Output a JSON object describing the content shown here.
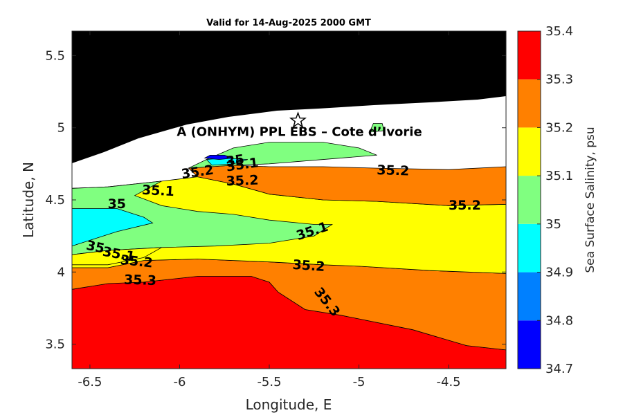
{
  "chart_data": {
    "type": "contour",
    "title": "Valid for 14-Aug-2025 2000 GMT",
    "xlabel": "Longitude, E",
    "ylabel": "Latitude, N",
    "xlim": [
      -6.6,
      -4.18
    ],
    "ylim": [
      3.33,
      5.67
    ],
    "xticks": [
      -6.5,
      -6,
      -5.5,
      -5,
      -4.5
    ],
    "xtick_labels": [
      "-6.5",
      "-6",
      "-5.5",
      "-5",
      "-4.5"
    ],
    "yticks": [
      3.5,
      4,
      4.5,
      5,
      5.5
    ],
    "ytick_labels": [
      "3.5",
      "4",
      "4.5",
      "5",
      "5.5"
    ],
    "colorbar": {
      "label": "Sea Surface Salinity, psu",
      "levels": [
        34.7,
        34.8,
        34.9,
        35.0,
        35.1,
        35.2,
        35.3,
        35.4
      ],
      "tick_labels": [
        "34.7",
        "34.8",
        "34.9",
        "35",
        "35.1",
        "35.2",
        "35.3",
        "35.4"
      ],
      "colors": [
        "#0000ff",
        "#0080ff",
        "#00ffff",
        "#80ff80",
        "#ffff00",
        "#ff8000",
        "#ff0000"
      ]
    },
    "land_color": "#000000",
    "site": {
      "label": "A (ONHYM) PPL EBS  – Cote d’Ivorie",
      "lon": -5.34,
      "lat": 5.05,
      "marker": "star"
    },
    "contour_labels": [
      {
        "text": "35",
        "lon": -5.69,
        "lat": 4.77,
        "angle": -8
      },
      {
        "text": "35.1",
        "lon": -5.65,
        "lat": 4.74,
        "angle": -8
      },
      {
        "text": "35.2",
        "lon": -5.9,
        "lat": 4.69,
        "angle": -8
      },
      {
        "text": "35.2",
        "lon": -5.65,
        "lat": 4.63,
        "angle": -2
      },
      {
        "text": "35.1",
        "lon": -6.12,
        "lat": 4.56,
        "angle": 3
      },
      {
        "text": "35",
        "lon": -6.35,
        "lat": 4.47,
        "angle": 0
      },
      {
        "text": "35.2",
        "lon": -4.81,
        "lat": 4.7,
        "angle": 2
      },
      {
        "text": "35.2",
        "lon": -4.41,
        "lat": 4.46,
        "angle": 0
      },
      {
        "text": "35.1",
        "lon": -5.26,
        "lat": 4.28,
        "angle": -18
      },
      {
        "text": "35",
        "lon": -6.47,
        "lat": 4.17,
        "angle": 12
      },
      {
        "text": "35.1",
        "lon": -6.34,
        "lat": 4.12,
        "angle": 10
      },
      {
        "text": "35.2",
        "lon": -6.24,
        "lat": 4.07,
        "angle": 6
      },
      {
        "text": "35.2",
        "lon": -5.28,
        "lat": 4.04,
        "angle": 4
      },
      {
        "text": "35.3",
        "lon": -6.22,
        "lat": 3.94,
        "angle": 2
      },
      {
        "text": "35.3",
        "lon": -5.18,
        "lat": 3.79,
        "angle": 52
      }
    ],
    "regions": [
      {
        "level_index": 6,
        "points": [
          [
            -6.6,
            3.33
          ],
          [
            -4.18,
            3.33
          ],
          [
            -4.18,
            3.46
          ],
          [
            -4.4,
            3.49
          ],
          [
            -4.7,
            3.6
          ],
          [
            -5.1,
            3.7
          ],
          [
            -5.3,
            3.74
          ],
          [
            -5.45,
            3.86
          ],
          [
            -5.5,
            3.93
          ],
          [
            -5.6,
            3.97
          ],
          [
            -5.9,
            3.97
          ],
          [
            -6.2,
            3.93
          ],
          [
            -6.4,
            3.92
          ],
          [
            -6.6,
            3.88
          ]
        ]
      },
      {
        "level_index": 5,
        "points": [
          [
            -6.6,
            3.88
          ],
          [
            -6.4,
            3.92
          ],
          [
            -6.2,
            3.93
          ],
          [
            -5.9,
            3.97
          ],
          [
            -5.6,
            3.97
          ],
          [
            -5.5,
            3.93
          ],
          [
            -5.45,
            3.86
          ],
          [
            -5.3,
            3.74
          ],
          [
            -5.1,
            3.7
          ],
          [
            -4.7,
            3.6
          ],
          [
            -4.4,
            3.49
          ],
          [
            -4.18,
            3.46
          ],
          [
            -4.18,
            3.99
          ],
          [
            -4.6,
            4.01
          ],
          [
            -5.0,
            4.04
          ],
          [
            -5.2,
            4.05
          ],
          [
            -5.5,
            4.07
          ],
          [
            -5.9,
            4.09
          ],
          [
            -6.2,
            4.08
          ],
          [
            -6.4,
            4.03
          ],
          [
            -6.6,
            4.03
          ]
        ]
      },
      {
        "level_index": 4,
        "points": [
          [
            -6.6,
            4.03
          ],
          [
            -6.4,
            4.03
          ],
          [
            -6.2,
            4.08
          ],
          [
            -5.9,
            4.09
          ],
          [
            -5.5,
            4.07
          ],
          [
            -5.2,
            4.05
          ],
          [
            -5.0,
            4.04
          ],
          [
            -4.6,
            4.01
          ],
          [
            -4.18,
            3.99
          ],
          [
            -4.18,
            4.47
          ],
          [
            -4.5,
            4.46
          ],
          [
            -4.9,
            4.49
          ],
          [
            -5.2,
            4.5
          ],
          [
            -5.5,
            4.54
          ],
          [
            -5.7,
            4.61
          ],
          [
            -5.9,
            4.66
          ],
          [
            -6.1,
            4.63
          ],
          [
            -6.4,
            4.59
          ],
          [
            -6.6,
            4.58
          ]
        ]
      },
      {
        "level_index": 5,
        "points": [
          [
            -5.9,
            4.66
          ],
          [
            -5.7,
            4.61
          ],
          [
            -5.5,
            4.54
          ],
          [
            -5.2,
            4.5
          ],
          [
            -4.9,
            4.49
          ],
          [
            -4.5,
            4.46
          ],
          [
            -4.18,
            4.47
          ],
          [
            -4.18,
            4.73
          ],
          [
            -4.5,
            4.71
          ],
          [
            -4.9,
            4.72
          ],
          [
            -5.2,
            4.73
          ],
          [
            -5.5,
            4.73
          ],
          [
            -5.7,
            4.74
          ],
          [
            -5.95,
            4.72
          ]
        ]
      },
      {
        "level_index": 3,
        "points": [
          [
            -6.6,
            4.58
          ],
          [
            -6.4,
            4.59
          ],
          [
            -6.1,
            4.63
          ],
          [
            -6.25,
            4.53
          ],
          [
            -6.1,
            4.46
          ],
          [
            -5.9,
            4.42
          ],
          [
            -5.7,
            4.4
          ],
          [
            -5.5,
            4.36
          ],
          [
            -5.25,
            4.33
          ],
          [
            -5.15,
            4.33
          ],
          [
            -5.25,
            4.25
          ],
          [
            -5.5,
            4.2
          ],
          [
            -5.8,
            4.18
          ],
          [
            -6.1,
            4.17
          ],
          [
            -6.4,
            4.15
          ],
          [
            -6.6,
            4.12
          ]
        ]
      },
      {
        "level_index": 2,
        "points": [
          [
            -6.6,
            4.44
          ],
          [
            -6.35,
            4.44
          ],
          [
            -6.2,
            4.38
          ],
          [
            -6.15,
            4.34
          ],
          [
            -6.35,
            4.28
          ],
          [
            -6.5,
            4.22
          ],
          [
            -6.6,
            4.18
          ]
        ]
      },
      {
        "level_index": 4,
        "points": [
          [
            -6.6,
            4.12
          ],
          [
            -6.4,
            4.15
          ],
          [
            -6.1,
            4.17
          ],
          [
            -6.2,
            4.1
          ],
          [
            -6.4,
            4.05
          ],
          [
            -6.6,
            4.05
          ]
        ]
      },
      {
        "level_index": 3,
        "points": [
          [
            -5.95,
            4.72
          ],
          [
            -5.7,
            4.74
          ],
          [
            -5.5,
            4.75
          ],
          [
            -5.3,
            4.77
          ],
          [
            -5.0,
            4.8
          ],
          [
            -4.9,
            4.81
          ],
          [
            -5.0,
            4.86
          ],
          [
            -5.2,
            4.9
          ],
          [
            -5.5,
            4.9
          ],
          [
            -5.7,
            4.86
          ],
          [
            -5.85,
            4.78
          ]
        ]
      },
      {
        "level_index": 2,
        "points": [
          [
            -5.85,
            4.78
          ],
          [
            -5.75,
            4.79
          ],
          [
            -5.62,
            4.78
          ],
          [
            -5.7,
            4.75
          ],
          [
            -5.82,
            4.74
          ]
        ]
      },
      {
        "level_index": 0,
        "points": [
          [
            -5.83,
            4.81
          ],
          [
            -5.75,
            4.81
          ],
          [
            -5.7,
            4.79
          ],
          [
            -5.78,
            4.78
          ],
          [
            -5.86,
            4.79
          ]
        ]
      },
      {
        "level_index": 3,
        "points": [
          [
            -4.92,
            5.03
          ],
          [
            -4.87,
            5.03
          ],
          [
            -4.86,
            4.98
          ],
          [
            -4.94,
            4.97
          ]
        ]
      }
    ]
  }
}
